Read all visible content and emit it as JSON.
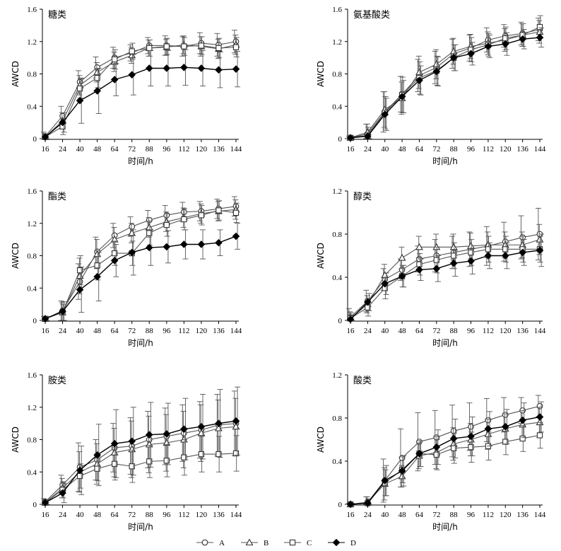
{
  "chart_data": [
    {
      "type": "line",
      "title": "糖类",
      "xlabel": "时间/h",
      "ylabel": "AWCD",
      "categories": [
        "16",
        "24",
        "40",
        "48",
        "64",
        "72",
        "88",
        "96",
        "112",
        "120",
        "136",
        "144"
      ],
      "ylim": [
        0,
        1.6
      ],
      "yticks": [
        "0",
        "0.4",
        "0.8",
        "1.2",
        "1.6"
      ],
      "series": [
        {
          "name": "A",
          "values": [
            0.03,
            0.28,
            0.7,
            0.88,
            1.0,
            1.06,
            1.15,
            1.15,
            1.14,
            1.18,
            1.16,
            1.2
          ],
          "err": [
            0.05,
            0.12,
            0.14,
            0.13,
            0.13,
            0.1,
            0.1,
            0.12,
            0.12,
            0.13,
            0.14,
            0.14
          ]
        },
        {
          "name": "B",
          "values": [
            0.02,
            0.22,
            0.66,
            0.82,
            0.95,
            1.03,
            1.12,
            1.13,
            1.16,
            1.14,
            1.11,
            1.16
          ],
          "err": [
            0.04,
            0.1,
            0.12,
            0.12,
            0.12,
            0.1,
            0.1,
            0.1,
            0.11,
            0.12,
            0.12,
            0.12
          ]
        },
        {
          "name": "C",
          "values": [
            0.02,
            0.15,
            0.62,
            0.75,
            0.98,
            1.08,
            1.12,
            1.14,
            1.14,
            1.15,
            1.12,
            1.13
          ],
          "err": [
            0.04,
            0.1,
            0.12,
            0.12,
            0.12,
            0.1,
            0.1,
            0.1,
            0.11,
            0.11,
            0.12,
            0.12
          ]
        },
        {
          "name": "D",
          "values": [
            0.02,
            0.2,
            0.47,
            0.59,
            0.73,
            0.79,
            0.87,
            0.87,
            0.88,
            0.87,
            0.85,
            0.86
          ],
          "err": [
            0.04,
            0.12,
            0.28,
            0.28,
            0.2,
            0.25,
            0.22,
            0.22,
            0.22,
            0.22,
            0.22,
            0.22
          ]
        }
      ]
    },
    {
      "type": "line",
      "title": "氨基酸类",
      "xlabel": "时间/h",
      "ylabel": "AWCD",
      "categories": [
        "16",
        "24",
        "40",
        "48",
        "64",
        "72",
        "88",
        "96",
        "112",
        "120",
        "136",
        "144"
      ],
      "ylim": [
        0,
        1.6
      ],
      "yticks": [
        "0",
        "0.4",
        "0.8",
        "1.2",
        "1.6"
      ],
      "series": [
        {
          "name": "A",
          "values": [
            0.01,
            0.06,
            0.33,
            0.55,
            0.78,
            0.88,
            1.05,
            1.12,
            1.22,
            1.27,
            1.3,
            1.35
          ],
          "err": [
            0.02,
            0.12,
            0.25,
            0.22,
            0.2,
            0.2,
            0.18,
            0.16,
            0.15,
            0.14,
            0.14,
            0.14
          ]
        },
        {
          "name": "B",
          "values": [
            0.01,
            0.08,
            0.36,
            0.5,
            0.82,
            0.92,
            1.08,
            1.14,
            1.18,
            1.22,
            1.28,
            1.32
          ],
          "err": [
            0.02,
            0.1,
            0.22,
            0.2,
            0.2,
            0.18,
            0.16,
            0.15,
            0.14,
            0.14,
            0.14,
            0.14
          ]
        },
        {
          "name": "C",
          "values": [
            0.01,
            0.04,
            0.32,
            0.54,
            0.75,
            0.84,
            1.0,
            1.1,
            1.16,
            1.24,
            1.28,
            1.38
          ],
          "err": [
            0.02,
            0.1,
            0.2,
            0.22,
            0.2,
            0.18,
            0.16,
            0.15,
            0.14,
            0.14,
            0.14,
            0.14
          ]
        },
        {
          "name": "D",
          "values": [
            0.01,
            0.03,
            0.3,
            0.52,
            0.72,
            0.83,
            1.0,
            1.05,
            1.14,
            1.17,
            1.23,
            1.25
          ],
          "err": [
            0.02,
            0.08,
            0.2,
            0.2,
            0.18,
            0.18,
            0.16,
            0.14,
            0.14,
            0.14,
            0.12,
            0.12
          ]
        }
      ]
    },
    {
      "type": "line",
      "title": "酯类",
      "xlabel": "时间/h",
      "ylabel": "AWCD",
      "categories": [
        "16",
        "24",
        "40",
        "48",
        "64",
        "72",
        "88",
        "96",
        "112",
        "120",
        "136",
        "144"
      ],
      "ylim": [
        0,
        1.6
      ],
      "yticks": [
        "0",
        "0.4",
        "0.8",
        "1.2",
        "1.6"
      ],
      "series": [
        {
          "name": "A",
          "values": [
            0.02,
            0.12,
            0.48,
            0.85,
            1.05,
            1.16,
            1.24,
            1.3,
            1.34,
            1.35,
            1.38,
            1.41
          ],
          "err": [
            0.03,
            0.12,
            0.22,
            0.18,
            0.15,
            0.12,
            0.12,
            0.12,
            0.12,
            0.12,
            0.12,
            0.12
          ]
        },
        {
          "name": "B",
          "values": [
            0.02,
            0.1,
            0.55,
            0.82,
            1.0,
            1.08,
            1.15,
            1.22,
            1.27,
            1.32,
            1.35,
            1.37
          ],
          "err": [
            0.03,
            0.12,
            0.22,
            0.18,
            0.15,
            0.12,
            0.12,
            0.12,
            0.12,
            0.12,
            0.12,
            0.12
          ]
        },
        {
          "name": "C",
          "values": [
            0.02,
            0.1,
            0.62,
            0.68,
            0.83,
            0.83,
            1.08,
            1.18,
            1.25,
            1.3,
            1.36,
            1.33
          ],
          "err": [
            0.03,
            0.1,
            0.18,
            0.18,
            0.15,
            0.15,
            0.15,
            0.14,
            0.13,
            0.12,
            0.12,
            0.12
          ]
        },
        {
          "name": "D",
          "values": [
            0.02,
            0.11,
            0.38,
            0.54,
            0.74,
            0.84,
            0.9,
            0.91,
            0.94,
            0.94,
            0.96,
            1.04
          ],
          "err": [
            0.03,
            0.12,
            0.28,
            0.3,
            0.2,
            0.28,
            0.22,
            0.2,
            0.18,
            0.18,
            0.16,
            0.16
          ]
        }
      ]
    },
    {
      "type": "line",
      "title": "醇类",
      "xlabel": "时间/h",
      "ylabel": "AWCD",
      "categories": [
        "16",
        "24",
        "40",
        "48",
        "64",
        "72",
        "88",
        "96",
        "112",
        "120",
        "136",
        "144"
      ],
      "ylim": [
        0,
        1.2
      ],
      "yticks": [
        "0",
        "0.4",
        "0.8",
        "1.2"
      ],
      "series": [
        {
          "name": "A",
          "values": [
            0.03,
            0.18,
            0.38,
            0.47,
            0.57,
            0.6,
            0.63,
            0.66,
            0.69,
            0.73,
            0.77,
            0.8
          ],
          "err": [
            0.08,
            0.1,
            0.1,
            0.1,
            0.12,
            0.15,
            0.15,
            0.16,
            0.18,
            0.18,
            0.2,
            0.24
          ]
        },
        {
          "name": "B",
          "values": [
            0.02,
            0.15,
            0.42,
            0.58,
            0.68,
            0.68,
            0.68,
            0.69,
            0.7,
            0.7,
            0.7,
            0.75
          ],
          "err": [
            0.06,
            0.08,
            0.1,
            0.1,
            0.1,
            0.12,
            0.12,
            0.12,
            0.12,
            0.12,
            0.12,
            0.14
          ]
        },
        {
          "name": "C",
          "values": [
            0.02,
            0.12,
            0.3,
            0.41,
            0.52,
            0.56,
            0.6,
            0.63,
            0.66,
            0.66,
            0.66,
            0.66
          ],
          "err": [
            0.05,
            0.08,
            0.1,
            0.1,
            0.1,
            0.12,
            0.12,
            0.12,
            0.12,
            0.12,
            0.12,
            0.12
          ]
        },
        {
          "name": "D",
          "values": [
            0.01,
            0.17,
            0.34,
            0.41,
            0.47,
            0.48,
            0.53,
            0.55,
            0.6,
            0.6,
            0.63,
            0.65
          ],
          "err": [
            0.04,
            0.08,
            0.1,
            0.1,
            0.1,
            0.12,
            0.12,
            0.12,
            0.12,
            0.12,
            0.12,
            0.15
          ]
        }
      ]
    },
    {
      "type": "line",
      "title": "胺类",
      "xlabel": "时间/h",
      "ylabel": "AWCD",
      "categories": [
        "16",
        "24",
        "40",
        "48",
        "64",
        "72",
        "88",
        "96",
        "112",
        "120",
        "136",
        "144"
      ],
      "ylim": [
        0,
        1.6
      ],
      "yticks": [
        "0",
        "0.4",
        "0.8",
        "1.2",
        "1.6"
      ],
      "series": [
        {
          "name": "A",
          "values": [
            0.03,
            0.24,
            0.46,
            0.55,
            0.7,
            0.72,
            0.8,
            0.84,
            0.88,
            0.92,
            0.98,
            1.0
          ],
          "err": [
            0.04,
            0.12,
            0.3,
            0.25,
            0.3,
            0.35,
            0.35,
            0.35,
            0.35,
            0.35,
            0.38,
            0.4
          ]
        },
        {
          "name": "B",
          "values": [
            0.02,
            0.2,
            0.4,
            0.5,
            0.64,
            0.68,
            0.74,
            0.76,
            0.8,
            0.88,
            0.94,
            0.96
          ],
          "err": [
            0.04,
            0.12,
            0.25,
            0.25,
            0.3,
            0.35,
            0.35,
            0.35,
            0.35,
            0.35,
            0.35,
            0.35
          ]
        },
        {
          "name": "C",
          "values": [
            0.02,
            0.18,
            0.35,
            0.44,
            0.5,
            0.47,
            0.53,
            0.54,
            0.58,
            0.62,
            0.62,
            0.63
          ],
          "err": [
            0.03,
            0.1,
            0.15,
            0.15,
            0.2,
            0.2,
            0.2,
            0.2,
            0.22,
            0.22,
            0.22,
            0.22
          ]
        },
        {
          "name": "D",
          "values": [
            0.02,
            0.14,
            0.42,
            0.61,
            0.75,
            0.78,
            0.86,
            0.87,
            0.93,
            0.96,
            1.0,
            1.03
          ],
          "err": [
            0.04,
            0.12,
            0.3,
            0.38,
            0.42,
            0.42,
            0.4,
            0.38,
            0.38,
            0.4,
            0.42,
            0.42
          ]
        }
      ]
    },
    {
      "type": "line",
      "title": "酸类",
      "xlabel": "时间/h",
      "ylabel": "AWCD",
      "categories": [
        "16",
        "24",
        "40",
        "48",
        "64",
        "72",
        "88",
        "96",
        "112",
        "120",
        "136",
        "144"
      ],
      "ylim": [
        0,
        1.2
      ],
      "yticks": [
        "0",
        "0.4",
        "0.8",
        "1.2"
      ],
      "series": [
        {
          "name": "A",
          "values": [
            0.0,
            0.02,
            0.22,
            0.43,
            0.58,
            0.62,
            0.68,
            0.72,
            0.78,
            0.83,
            0.87,
            0.91
          ],
          "err": [
            0.01,
            0.05,
            0.2,
            0.27,
            0.27,
            0.25,
            0.24,
            0.22,
            0.2,
            0.16,
            0.12,
            0.1
          ]
        },
        {
          "name": "B",
          "values": [
            0.0,
            0.02,
            0.19,
            0.26,
            0.45,
            0.48,
            0.56,
            0.6,
            0.65,
            0.7,
            0.74,
            0.76
          ],
          "err": [
            0.01,
            0.05,
            0.15,
            0.1,
            0.12,
            0.15,
            0.15,
            0.15,
            0.14,
            0.14,
            0.13,
            0.14
          ]
        },
        {
          "name": "C",
          "values": [
            0.0,
            0.01,
            0.2,
            0.32,
            0.47,
            0.46,
            0.52,
            0.53,
            0.54,
            0.58,
            0.61,
            0.64
          ],
          "err": [
            0.01,
            0.04,
            0.12,
            0.12,
            0.12,
            0.14,
            0.14,
            0.14,
            0.13,
            0.12,
            0.12,
            0.12
          ]
        },
        {
          "name": "D",
          "values": [
            0.0,
            0.01,
            0.22,
            0.31,
            0.47,
            0.53,
            0.61,
            0.63,
            0.7,
            0.72,
            0.78,
            0.81
          ],
          "err": [
            0.01,
            0.04,
            0.14,
            0.14,
            0.12,
            0.16,
            0.18,
            0.18,
            0.16,
            0.16,
            0.16,
            0.14
          ]
        }
      ]
    }
  ],
  "legend": [
    {
      "label": "A",
      "marker": "circle"
    },
    {
      "label": "B",
      "marker": "triangle"
    },
    {
      "label": "C",
      "marker": "square"
    },
    {
      "label": "D",
      "marker": "diamond-filled"
    }
  ],
  "colors": {
    "line": "#555555",
    "markerLine": "#333333",
    "filled": "#000000",
    "axis": "#000000"
  }
}
